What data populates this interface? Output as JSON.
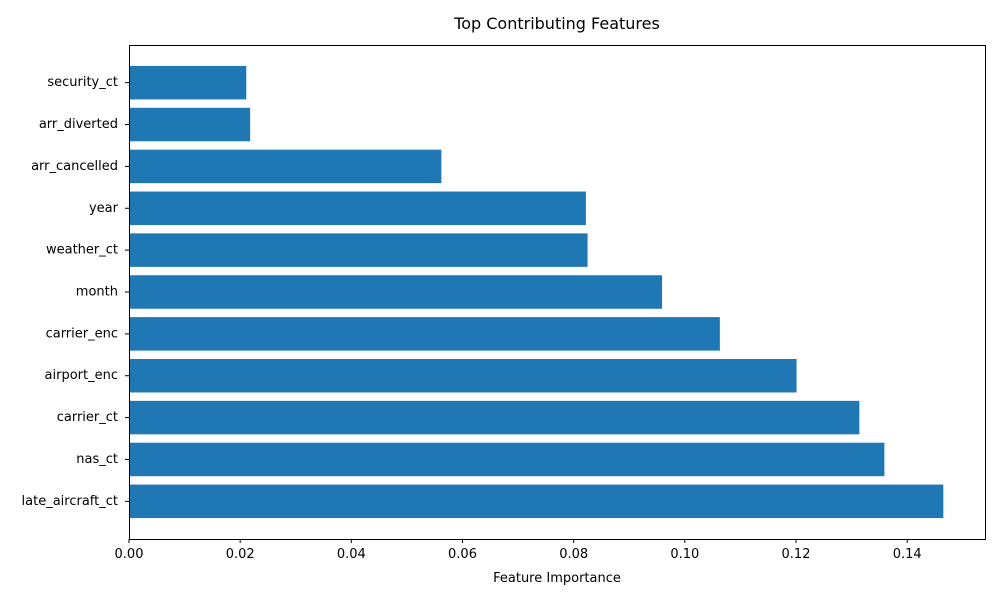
{
  "chart_data": {
    "type": "bar",
    "orientation": "horizontal",
    "title": "Top Contributing Features",
    "xlabel": "Feature Importance",
    "ylabel": "",
    "xlim": [
      0,
      0.154
    ],
    "x_ticks": [
      0.0,
      0.02,
      0.04,
      0.06,
      0.08,
      0.1,
      0.12,
      0.14
    ],
    "x_tick_labels": [
      "0.00",
      "0.02",
      "0.04",
      "0.06",
      "0.08",
      "0.10",
      "0.12",
      "0.14"
    ],
    "categories": [
      "late_aircraft_ct",
      "nas_ct",
      "carrier_ct",
      "airport_enc",
      "carrier_enc",
      "month",
      "weather_ct",
      "year",
      "arr_cancelled",
      "arr_diverted",
      "security_ct"
    ],
    "values": [
      0.1465,
      0.1359,
      0.1314,
      0.1201,
      0.1063,
      0.0959,
      0.0825,
      0.0822,
      0.0562,
      0.0218,
      0.0211
    ],
    "bar_color": "#1f77b4",
    "grid": false,
    "legend": false
  }
}
